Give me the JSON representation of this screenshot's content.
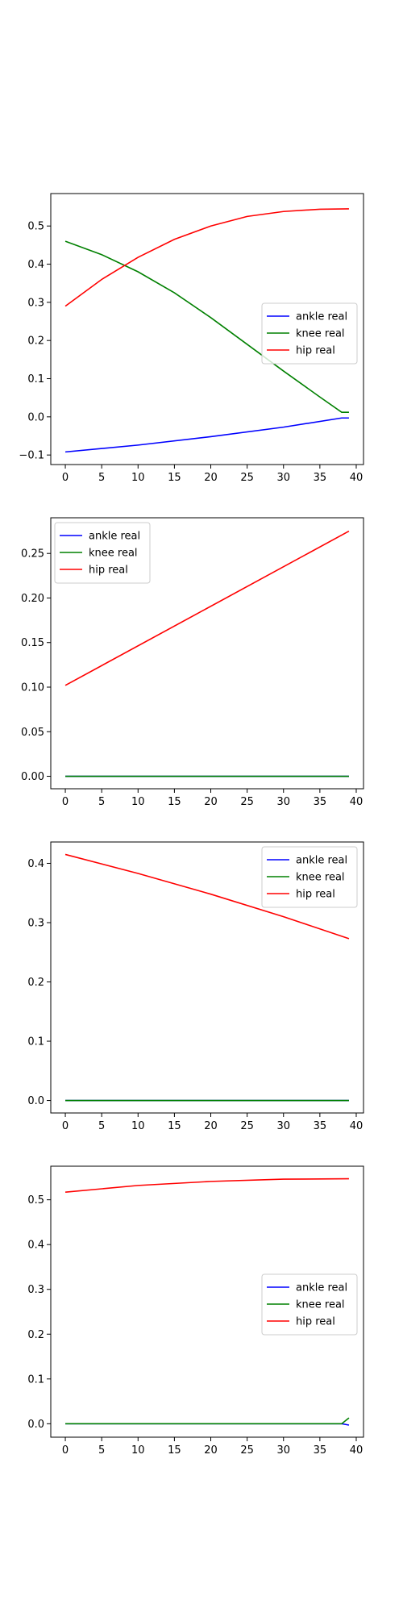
{
  "chart_data": [
    {
      "type": "line",
      "x": [
        0,
        39
      ],
      "xlim": [
        -2,
        41
      ],
      "ylim": [
        -0.125,
        0.585
      ],
      "xticks": [
        "0",
        "5",
        "10",
        "15",
        "20",
        "25",
        "30",
        "35",
        "40"
      ],
      "yticks": [
        "-0.1",
        "0.0",
        "0.1",
        "0.2",
        "0.3",
        "0.4",
        "0.5"
      ],
      "legend_position": "center-right",
      "series": [
        {
          "name": "ankle real",
          "color": "#0000ff",
          "x": [
            0,
            10,
            20,
            30,
            38,
            39
          ],
          "y": [
            -0.092,
            -0.074,
            -0.052,
            -0.027,
            -0.003,
            -0.003
          ]
        },
        {
          "name": "knee real",
          "color": "#008000",
          "x": [
            0,
            5,
            10,
            15,
            20,
            25,
            30,
            35,
            38,
            39
          ],
          "y": [
            0.46,
            0.425,
            0.38,
            0.325,
            0.26,
            0.19,
            0.12,
            0.052,
            0.012,
            0.012
          ]
        },
        {
          "name": "hip real",
          "color": "#ff0000",
          "x": [
            0,
            5,
            10,
            15,
            20,
            25,
            30,
            35,
            39
          ],
          "y": [
            0.29,
            0.36,
            0.418,
            0.465,
            0.5,
            0.525,
            0.538,
            0.544,
            0.545
          ]
        }
      ]
    },
    {
      "type": "line",
      "xlim": [
        -2,
        41
      ],
      "ylim": [
        -0.014,
        0.29
      ],
      "xticks": [
        "0",
        "5",
        "10",
        "15",
        "20",
        "25",
        "30",
        "35",
        "40"
      ],
      "yticks": [
        "0.00",
        "0.05",
        "0.10",
        "0.15",
        "0.20",
        "0.25"
      ],
      "legend_position": "top-left",
      "series": [
        {
          "name": "ankle real",
          "color": "#0000ff",
          "x": [
            0,
            39
          ],
          "y": [
            0.0,
            0.0
          ]
        },
        {
          "name": "knee real",
          "color": "#008000",
          "x": [
            0,
            39
          ],
          "y": [
            0.0,
            0.0
          ]
        },
        {
          "name": "hip real",
          "color": "#ff0000",
          "x": [
            0,
            39
          ],
          "y": [
            0.102,
            0.275
          ]
        }
      ]
    },
    {
      "type": "line",
      "xlim": [
        -2,
        41
      ],
      "ylim": [
        -0.021,
        0.436
      ],
      "xticks": [
        "0",
        "5",
        "10",
        "15",
        "20",
        "25",
        "30",
        "35",
        "40"
      ],
      "yticks": [
        "0.0",
        "0.1",
        "0.2",
        "0.3",
        "0.4"
      ],
      "legend_position": "top-right",
      "series": [
        {
          "name": "ankle real",
          "color": "#0000ff",
          "x": [
            0,
            39
          ],
          "y": [
            0.0,
            0.0
          ]
        },
        {
          "name": "knee real",
          "color": "#008000",
          "x": [
            0,
            39
          ],
          "y": [
            0.0,
            0.0
          ]
        },
        {
          "name": "hip real",
          "color": "#ff0000",
          "x": [
            0,
            10,
            20,
            30,
            39
          ],
          "y": [
            0.415,
            0.383,
            0.348,
            0.31,
            0.273
          ]
        }
      ]
    },
    {
      "type": "line",
      "xlim": [
        -2,
        41
      ],
      "ylim": [
        -0.03,
        0.575
      ],
      "xticks": [
        "0",
        "5",
        "10",
        "15",
        "20",
        "25",
        "30",
        "35",
        "40"
      ],
      "yticks": [
        "0.0",
        "0.1",
        "0.2",
        "0.3",
        "0.4",
        "0.5"
      ],
      "legend_position": "center-right",
      "series": [
        {
          "name": "ankle real",
          "color": "#0000ff",
          "x": [
            0,
            38,
            39
          ],
          "y": [
            0.0,
            0.0,
            -0.003
          ]
        },
        {
          "name": "knee real",
          "color": "#008000",
          "x": [
            0,
            38,
            39
          ],
          "y": [
            0.0,
            0.0,
            0.013
          ]
        },
        {
          "name": "hip real",
          "color": "#ff0000",
          "x": [
            0,
            10,
            20,
            30,
            39
          ],
          "y": [
            0.517,
            0.532,
            0.541,
            0.546,
            0.547
          ]
        }
      ]
    }
  ]
}
